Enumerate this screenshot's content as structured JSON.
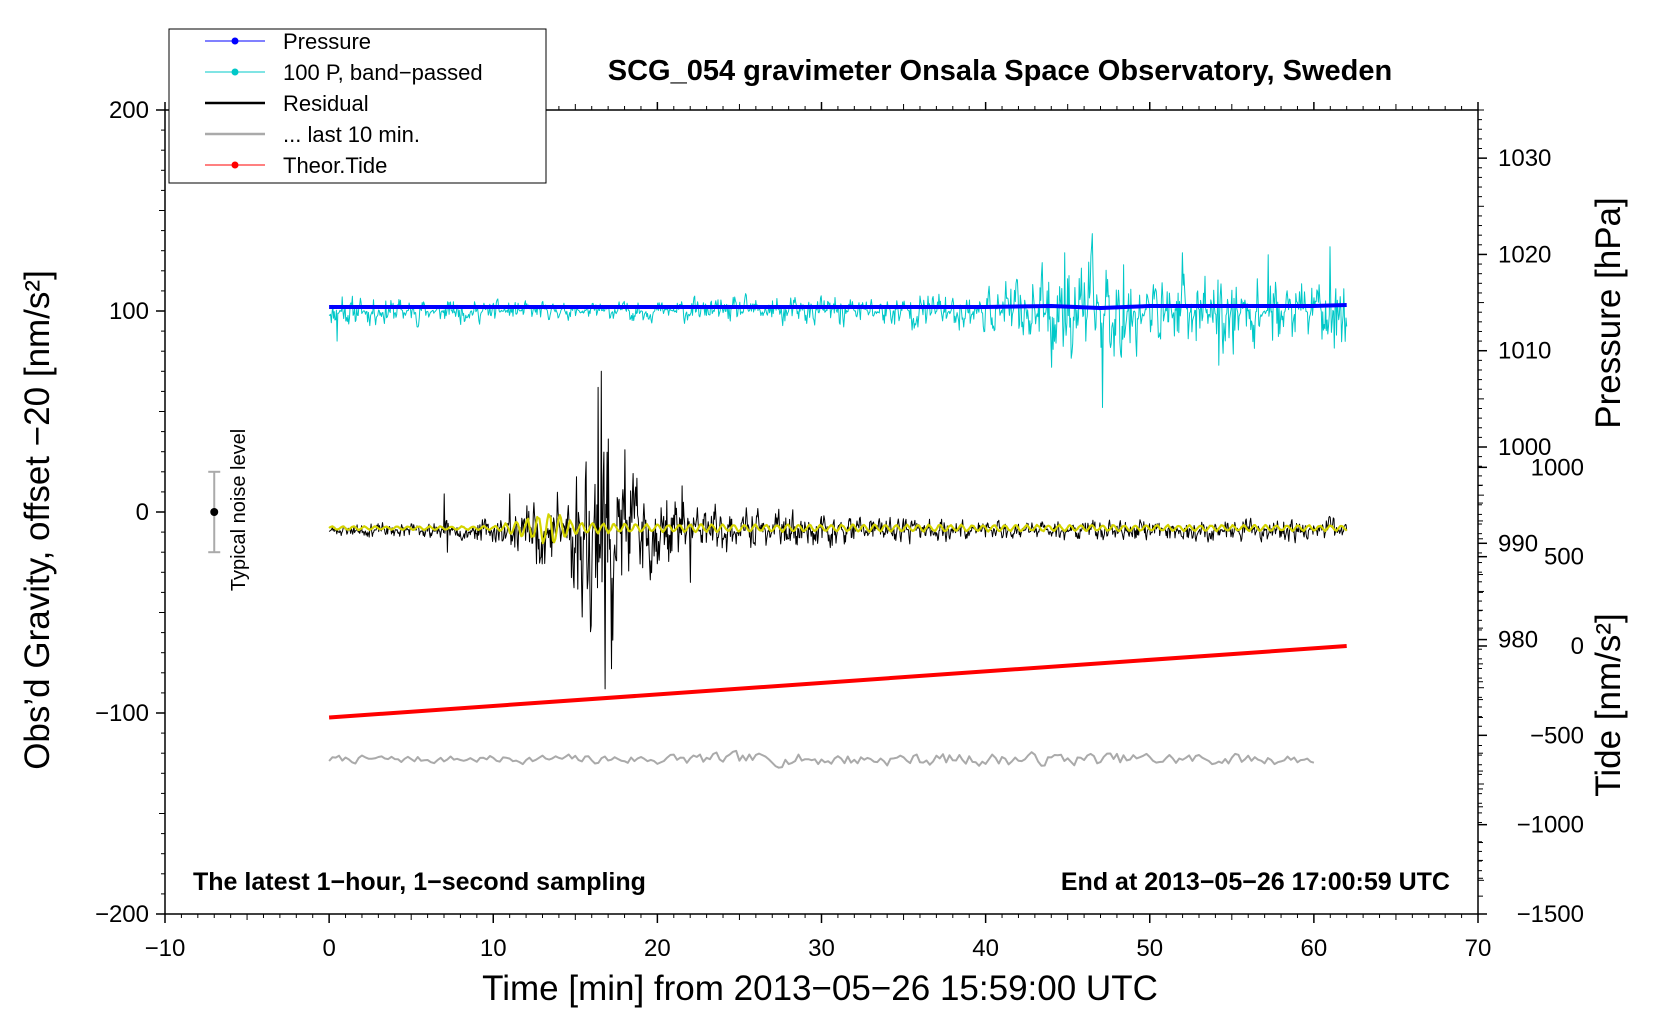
{
  "chart_data": {
    "type": "line",
    "title": "SCG_054 gravimeter Onsala Space Observatory, Sweden",
    "xlabel": "Time [min] from 2013−05−26 15:59:00 UTC",
    "ylabel": "Obs’d Gravity, offset −20 [nm/s²]",
    "xlim": [
      -10,
      70
    ],
    "ylim": [
      -200,
      200
    ],
    "x_ticks": [
      -10,
      0,
      10,
      20,
      30,
      40,
      50,
      60,
      70
    ],
    "x_tick_labels": [
      "−10",
      "0",
      "10",
      "20",
      "30",
      "40",
      "50",
      "60",
      "70"
    ],
    "y_ticks": [
      -200,
      -100,
      0,
      100,
      200
    ],
    "y_tick_labels": [
      "−200",
      "−100",
      "0",
      "100",
      "200"
    ],
    "right_axis_pressure": {
      "label": "Pressure [hPa]",
      "ticks": [
        980,
        990,
        1000,
        1010,
        1020,
        1030
      ],
      "tick_labels": [
        "980",
        "990",
        "1000",
        "1010",
        "1020",
        "1030"
      ],
      "range": [
        951.5,
        1035
      ]
    },
    "right_axis_tide": {
      "label": "Tide [nm/s²]",
      "ticks": [
        -1500,
        -1000,
        -500,
        0,
        500,
        1000
      ],
      "tick_labels": [
        "−1500",
        "−1000",
        "−500",
        "0",
        "500",
        "1000"
      ],
      "range": [
        -1500,
        3000
      ]
    },
    "legend": {
      "placement": "top-left",
      "entries": [
        {
          "label": "Pressure",
          "color": "#0000ff",
          "marker": true
        },
        {
          "label": "100 P, band−passed",
          "color": "#00c8c8",
          "marker": true
        },
        {
          "label": "Residual",
          "color": "#000000",
          "marker": false
        },
        {
          "label": "... last 10 min.",
          "color": "#aaaaaa",
          "marker": false
        },
        {
          "label": "Theor.Tide",
          "color": "#ff0000",
          "marker": true
        }
      ]
    },
    "annotations": {
      "left": "The latest 1−hour, 1−second sampling",
      "right": "End at 2013−05−26 17:00:59 UTC",
      "noise": "Typical noise level"
    },
    "noise_bar": {
      "x": -7,
      "center": 0,
      "low": -20,
      "high": 20
    },
    "series": [
      {
        "name": "Pressure",
        "axis": "left",
        "color": "#0000ff",
        "x": [
          0,
          10,
          20,
          30,
          40,
          44,
          47,
          50,
          55,
          60,
          62
        ],
        "y": [
          102,
          102,
          102,
          102,
          102,
          102.5,
          101.5,
          102.5,
          102.5,
          102.5,
          103
        ]
      },
      {
        "name": "100 P, band−passed",
        "axis": "left",
        "color": "#00c8c8",
        "x_start": 0,
        "x_end": 62,
        "baseline": 100,
        "amplitude_envelope": [
          [
            0,
            8
          ],
          [
            15,
            4
          ],
          [
            30,
            8
          ],
          [
            40,
            10
          ],
          [
            44,
            22
          ],
          [
            47,
            30
          ],
          [
            50,
            15
          ],
          [
            55,
            20
          ],
          [
            60,
            15
          ],
          [
            62,
            25
          ]
        ],
        "spikes": [
          [
            0.5,
            85
          ],
          [
            0.8,
            107
          ],
          [
            44,
            72
          ],
          [
            44.8,
            129
          ],
          [
            47.1,
            52
          ],
          [
            48.4,
            123
          ],
          [
            52,
            129
          ],
          [
            54.2,
            73
          ],
          [
            57.2,
            128
          ],
          [
            61,
            132
          ],
          [
            61.4,
            88
          ]
        ]
      },
      {
        "name": "Residual",
        "axis": "left",
        "color": "#000000",
        "x_start": 0,
        "x_end": 62,
        "baseline": -9,
        "amplitude_envelope": [
          [
            0,
            3
          ],
          [
            7,
            4
          ],
          [
            10,
            6
          ],
          [
            12,
            15
          ],
          [
            14,
            25
          ],
          [
            16,
            45
          ],
          [
            16.6,
            75
          ],
          [
            18,
            30
          ],
          [
            20,
            20
          ],
          [
            22,
            15
          ],
          [
            25,
            10
          ],
          [
            30,
            8
          ],
          [
            35,
            6
          ],
          [
            40,
            5
          ],
          [
            50,
            5
          ],
          [
            62,
            6
          ]
        ],
        "spikes": [
          [
            7,
            9
          ],
          [
            7.2,
            -20
          ],
          [
            11,
            9
          ],
          [
            16.4,
            62
          ],
          [
            16.6,
            70
          ],
          [
            16.8,
            -88
          ],
          [
            17.2,
            -78
          ],
          [
            18,
            31
          ],
          [
            21.5,
            13
          ],
          [
            22,
            -35
          ]
        ]
      },
      {
        "name": "Residual smoothed",
        "axis": "left",
        "color": "#d4d400",
        "x_start": 0,
        "x_end": 62,
        "baseline": -8,
        "amplitude_envelope": [
          [
            0,
            1
          ],
          [
            10,
            1
          ],
          [
            12,
            5
          ],
          [
            13.5,
            10
          ],
          [
            15,
            3
          ],
          [
            20,
            2
          ],
          [
            62,
            1.5
          ]
        ]
      },
      {
        "name": "... last 10 min.",
        "axis": "left",
        "color": "#aaaaaa",
        "x_start": 0,
        "x_end": 60,
        "baseline": -123,
        "amplitude_envelope": [
          [
            0,
            3
          ],
          [
            10,
            3
          ],
          [
            25,
            5
          ],
          [
            40,
            5
          ],
          [
            50,
            5
          ],
          [
            60,
            4
          ]
        ]
      },
      {
        "name": "Theor.Tide",
        "axis": "tide",
        "color": "#ff0000",
        "x": [
          0,
          62
        ],
        "y": [
          -400,
          0
        ]
      }
    ]
  }
}
